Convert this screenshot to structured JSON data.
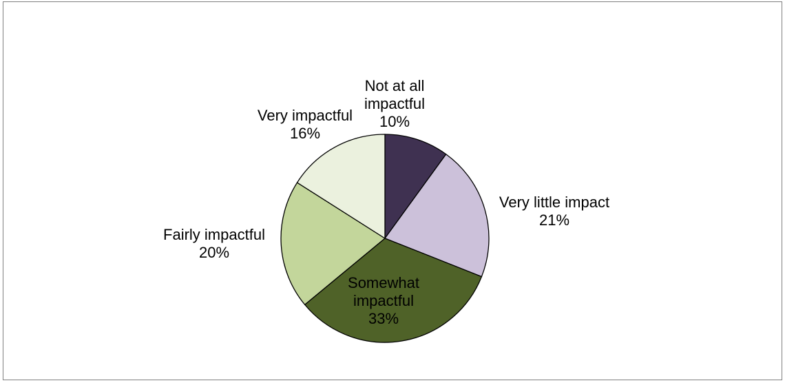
{
  "chart_data": {
    "type": "pie",
    "title": "",
    "start_angle_deg": 0,
    "direction": "clockwise",
    "legend": "none",
    "slices": [
      {
        "label_lines": [
          "Not at all",
          "impactful"
        ],
        "value": 10,
        "value_label": "10%",
        "color": "#3f3151"
      },
      {
        "label_lines": [
          "Very little impact"
        ],
        "value": 21,
        "value_label": "21%",
        "color": "#ccc1da"
      },
      {
        "label_lines": [
          "Somewhat",
          "impactful"
        ],
        "value": 33,
        "value_label": "33%",
        "color": "#4f6228"
      },
      {
        "label_lines": [
          "Fairly impactful"
        ],
        "value": 20,
        "value_label": "20%",
        "color": "#c3d69b"
      },
      {
        "label_lines": [
          "Very impactful"
        ],
        "value": 16,
        "value_label": "16%",
        "color": "#ebf1de"
      }
    ]
  }
}
